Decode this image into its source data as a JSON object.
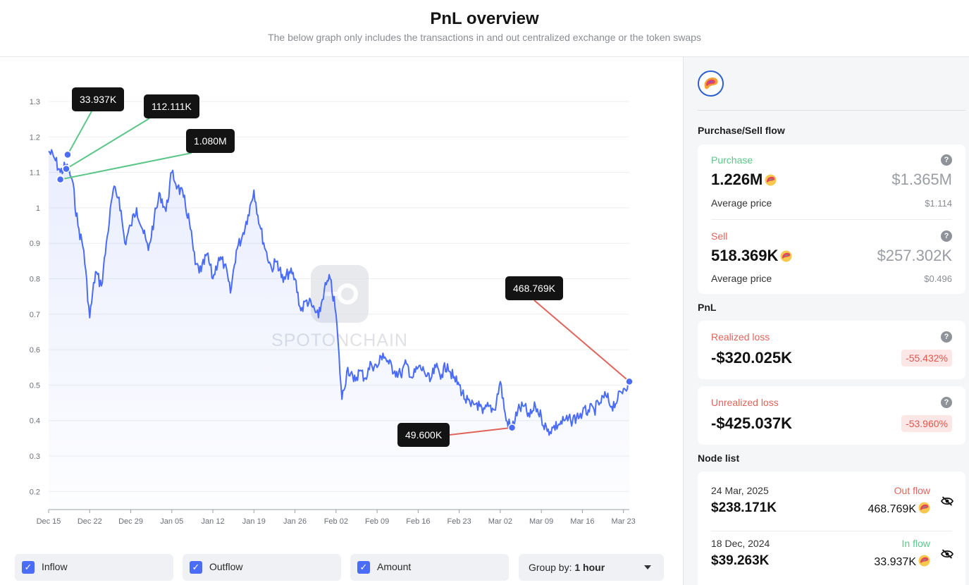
{
  "header": {
    "title": "PnL overview",
    "subtitle": "The below graph only includes the transactions in and out centralized exchange or the token swaps"
  },
  "chart": {
    "watermark": "SPOTONCHAIN",
    "line_color": "#4a6cf7",
    "callouts": [
      {
        "label": "33.937K",
        "date": "2024-12-18",
        "value": 1.15,
        "line_color": "#5cc689"
      },
      {
        "label": "112.111K",
        "date": "2024-12-18",
        "value": 1.11,
        "line_color": "#5cc689"
      },
      {
        "label": "1.080M",
        "date": "2024-12-17",
        "value": 1.08,
        "line_color": "#5cc689"
      },
      {
        "label": "468.769K",
        "date": "2025-03-24",
        "value": 0.51,
        "line_color": "#e0645c"
      },
      {
        "label": "49.600K",
        "date": "2025-03-04",
        "value": 0.38,
        "line_color": "#e0645c"
      }
    ]
  },
  "chart_data": {
    "type": "line",
    "y_ticks": [
      "1.3",
      "1.2",
      "1.1",
      "1",
      "0.9",
      "0.8",
      "0.7",
      "0.6",
      "0.5",
      "0.4",
      "0.3",
      "0.2"
    ],
    "x_ticks": [
      "Dec 15",
      "Dec 22",
      "Dec 29",
      "Jan 05",
      "Jan 12",
      "Jan 19",
      "Jan 26",
      "Feb 02",
      "Feb 09",
      "Feb 16",
      "Feb 23",
      "Mar 02",
      "Mar 09",
      "Mar 16",
      "Mar 23"
    ],
    "ylim": [
      0.15,
      1.3
    ],
    "xlim": [
      "2024-12-15",
      "2025-03-24"
    ],
    "grid": true,
    "series": [
      {
        "x": [
          "2024-12-15",
          "2024-12-16",
          "2024-12-17",
          "2024-12-18",
          "2024-12-19",
          "2024-12-20",
          "2024-12-21",
          "2024-12-22",
          "2024-12-23",
          "2024-12-24",
          "2024-12-25",
          "2024-12-26",
          "2024-12-27",
          "2024-12-28",
          "2024-12-29",
          "2024-12-30",
          "2024-12-31",
          "2025-01-01",
          "2025-01-02",
          "2025-01-03",
          "2025-01-04",
          "2025-01-05",
          "2025-01-06",
          "2025-01-07",
          "2025-01-08",
          "2025-01-09",
          "2025-01-10",
          "2025-01-11",
          "2025-01-12",
          "2025-01-13",
          "2025-01-14",
          "2025-01-15",
          "2025-01-16",
          "2025-01-17",
          "2025-01-18",
          "2025-01-19",
          "2025-01-20",
          "2025-01-21",
          "2025-01-22",
          "2025-01-23",
          "2025-01-24",
          "2025-01-25",
          "2025-01-26",
          "2025-01-27",
          "2025-01-28",
          "2025-01-29",
          "2025-01-30",
          "2025-01-31",
          "2025-02-01",
          "2025-02-02",
          "2025-02-03",
          "2025-02-04",
          "2025-02-05",
          "2025-02-06",
          "2025-02-07",
          "2025-02-08",
          "2025-02-09",
          "2025-02-10",
          "2025-02-11",
          "2025-02-12",
          "2025-02-13",
          "2025-02-14",
          "2025-02-15",
          "2025-02-16",
          "2025-02-17",
          "2025-02-18",
          "2025-02-19",
          "2025-02-20",
          "2025-02-21",
          "2025-02-22",
          "2025-02-23",
          "2025-02-24",
          "2025-02-25",
          "2025-02-26",
          "2025-02-27",
          "2025-02-28",
          "2025-03-01",
          "2025-03-02",
          "2025-03-03",
          "2025-03-04",
          "2025-03-05",
          "2025-03-06",
          "2025-03-07",
          "2025-03-08",
          "2025-03-09",
          "2025-03-10",
          "2025-03-11",
          "2025-03-12",
          "2025-03-13",
          "2025-03-14",
          "2025-03-15",
          "2025-03-16",
          "2025-03-17",
          "2025-03-18",
          "2025-03-19",
          "2025-03-20",
          "2025-03-21",
          "2025-03-22",
          "2025-03-23",
          "2025-03-24"
        ],
        "values": [
          1.16,
          1.14,
          1.1,
          1.12,
          1.08,
          0.95,
          0.88,
          0.69,
          0.82,
          0.78,
          0.92,
          1.05,
          1.03,
          0.9,
          0.95,
          1.0,
          0.94,
          0.88,
          0.97,
          1.04,
          0.99,
          1.1,
          1.06,
          1.03,
          0.96,
          0.84,
          0.82,
          0.87,
          0.8,
          0.86,
          0.84,
          0.76,
          0.88,
          0.92,
          0.98,
          1.05,
          0.95,
          0.88,
          0.83,
          0.85,
          0.79,
          0.82,
          0.8,
          0.71,
          0.74,
          0.72,
          0.69,
          0.77,
          0.8,
          0.7,
          0.46,
          0.55,
          0.51,
          0.54,
          0.52,
          0.56,
          0.55,
          0.59,
          0.56,
          0.54,
          0.53,
          0.56,
          0.52,
          0.55,
          0.54,
          0.51,
          0.55,
          0.53,
          0.56,
          0.52,
          0.5,
          0.46,
          0.44,
          0.45,
          0.42,
          0.44,
          0.43,
          0.51,
          0.4,
          0.38,
          0.43,
          0.44,
          0.41,
          0.44,
          0.41,
          0.37,
          0.38,
          0.39,
          0.4,
          0.4,
          0.41,
          0.42,
          0.43,
          0.43,
          0.45,
          0.47,
          0.44,
          0.46,
          0.49,
          0.51
        ]
      }
    ]
  },
  "controls": {
    "inflow_label": "Inflow",
    "outflow_label": "Outflow",
    "amount_label": "Amount",
    "group_by_label": "Group by:",
    "group_by_value": "1 hour"
  },
  "sidebar": {
    "purchase_sell_title": "Purchase/Sell flow",
    "purchase": {
      "label": "Purchase",
      "amount": "1.226M",
      "usd": "$1.365M",
      "avg_label": "Average price",
      "avg_value": "$1.114"
    },
    "sell": {
      "label": "Sell",
      "amount": "518.369K",
      "usd": "$257.302K",
      "avg_label": "Average price",
      "avg_value": "$0.496"
    },
    "pnl_title": "PnL",
    "realized": {
      "label": "Realized loss",
      "value": "-$320.025K",
      "pct": "-55.432%"
    },
    "unrealized": {
      "label": "Unrealized loss",
      "value": "-$425.037K",
      "pct": "-53.960%"
    },
    "node_list_title": "Node list",
    "nodes": [
      {
        "date": "24 Mar, 2025",
        "flow": "Out flow",
        "usd": "$238.171K",
        "amount": "468.769K",
        "flow_color": "#e0645c"
      },
      {
        "date": "18 Dec, 2024",
        "flow": "In flow",
        "usd": "$39.263K",
        "amount": "33.937K",
        "flow_color": "#5cc689"
      }
    ]
  },
  "colors": {
    "accent": "#4a6cf7",
    "green": "#5cc689",
    "red": "#e0645c"
  },
  "icons": [
    "token-logo-icon",
    "help-icon",
    "eye-off-icon",
    "checkbox-check-icon",
    "chevron-down-icon"
  ]
}
